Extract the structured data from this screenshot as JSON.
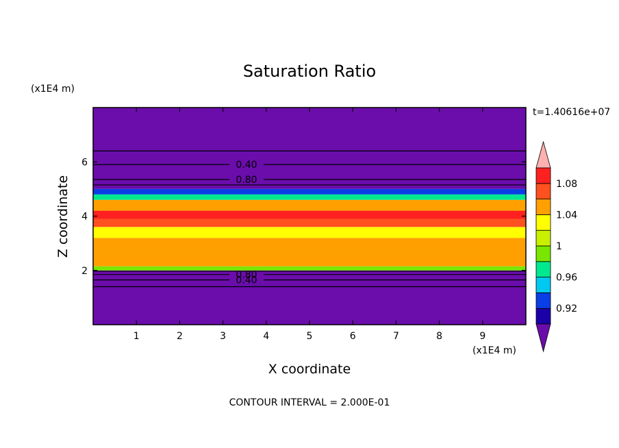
{
  "chart_data": {
    "type": "heatmap",
    "title": "Saturation Ratio",
    "xlabel": "X coordinate",
    "ylabel": "Z coordinate",
    "x_units": "(x1E4 m)",
    "y_units": "(x1E4 m)",
    "time_label": "t=1.40616e+07",
    "footer": "CONTOUR INTERVAL = 2.000E-01",
    "xlim": [
      0,
      10
    ],
    "ylim": [
      0,
      8
    ],
    "x_ticks": [
      "1",
      "2",
      "3",
      "4",
      "5",
      "6",
      "7",
      "8",
      "9"
    ],
    "y_ticks": [
      "2",
      "4",
      "6"
    ],
    "colorbar": {
      "tick_labels": [
        "0.92",
        "0.96",
        "1",
        "1.04",
        "1.08"
      ],
      "levels": [
        0.9,
        0.92,
        0.94,
        0.96,
        0.98,
        1.0,
        1.02,
        1.04,
        1.06,
        1.08,
        1.1
      ],
      "colors": [
        "#6a0dab",
        "#1a00a6",
        "#0a3ee6",
        "#00c8f0",
        "#00e890",
        "#78e600",
        "#c8f000",
        "#ffff00",
        "#ffa000",
        "#ff5020",
        "#ff2020",
        "#ffb0b0"
      ]
    },
    "layers": [
      {
        "z_bottom": 0.0,
        "z_top": 2.0,
        "value": 0.88
      },
      {
        "z_bottom": 2.0,
        "z_top": 2.15,
        "value": 0.985
      },
      {
        "z_bottom": 2.15,
        "z_top": 2.6,
        "value": 1.05
      },
      {
        "z_bottom": 2.6,
        "z_top": 3.2,
        "value": 1.04
      },
      {
        "z_bottom": 3.2,
        "z_top": 3.6,
        "value": 1.03
      },
      {
        "z_bottom": 3.6,
        "z_top": 3.9,
        "value": 1.06
      },
      {
        "z_bottom": 3.9,
        "z_top": 4.2,
        "value": 1.08
      },
      {
        "z_bottom": 4.2,
        "z_top": 4.6,
        "value": 1.05
      },
      {
        "z_bottom": 4.6,
        "z_top": 4.8,
        "value": 0.97
      },
      {
        "z_bottom": 4.8,
        "z_top": 5.0,
        "value": 0.93
      },
      {
        "z_bottom": 5.0,
        "z_top": 8.0,
        "value": 0.6
      }
    ],
    "contour_lines": [
      {
        "z": 1.4,
        "label": ""
      },
      {
        "z": 1.65,
        "label": "0.40"
      },
      {
        "z": 1.85,
        "label": "0.80"
      },
      {
        "z": 1.97,
        "label": ""
      },
      {
        "z": 5.15,
        "label": ""
      },
      {
        "z": 5.35,
        "label": "0.80"
      },
      {
        "z": 5.9,
        "label": "0.40"
      },
      {
        "z": 6.4,
        "label": ""
      }
    ]
  }
}
